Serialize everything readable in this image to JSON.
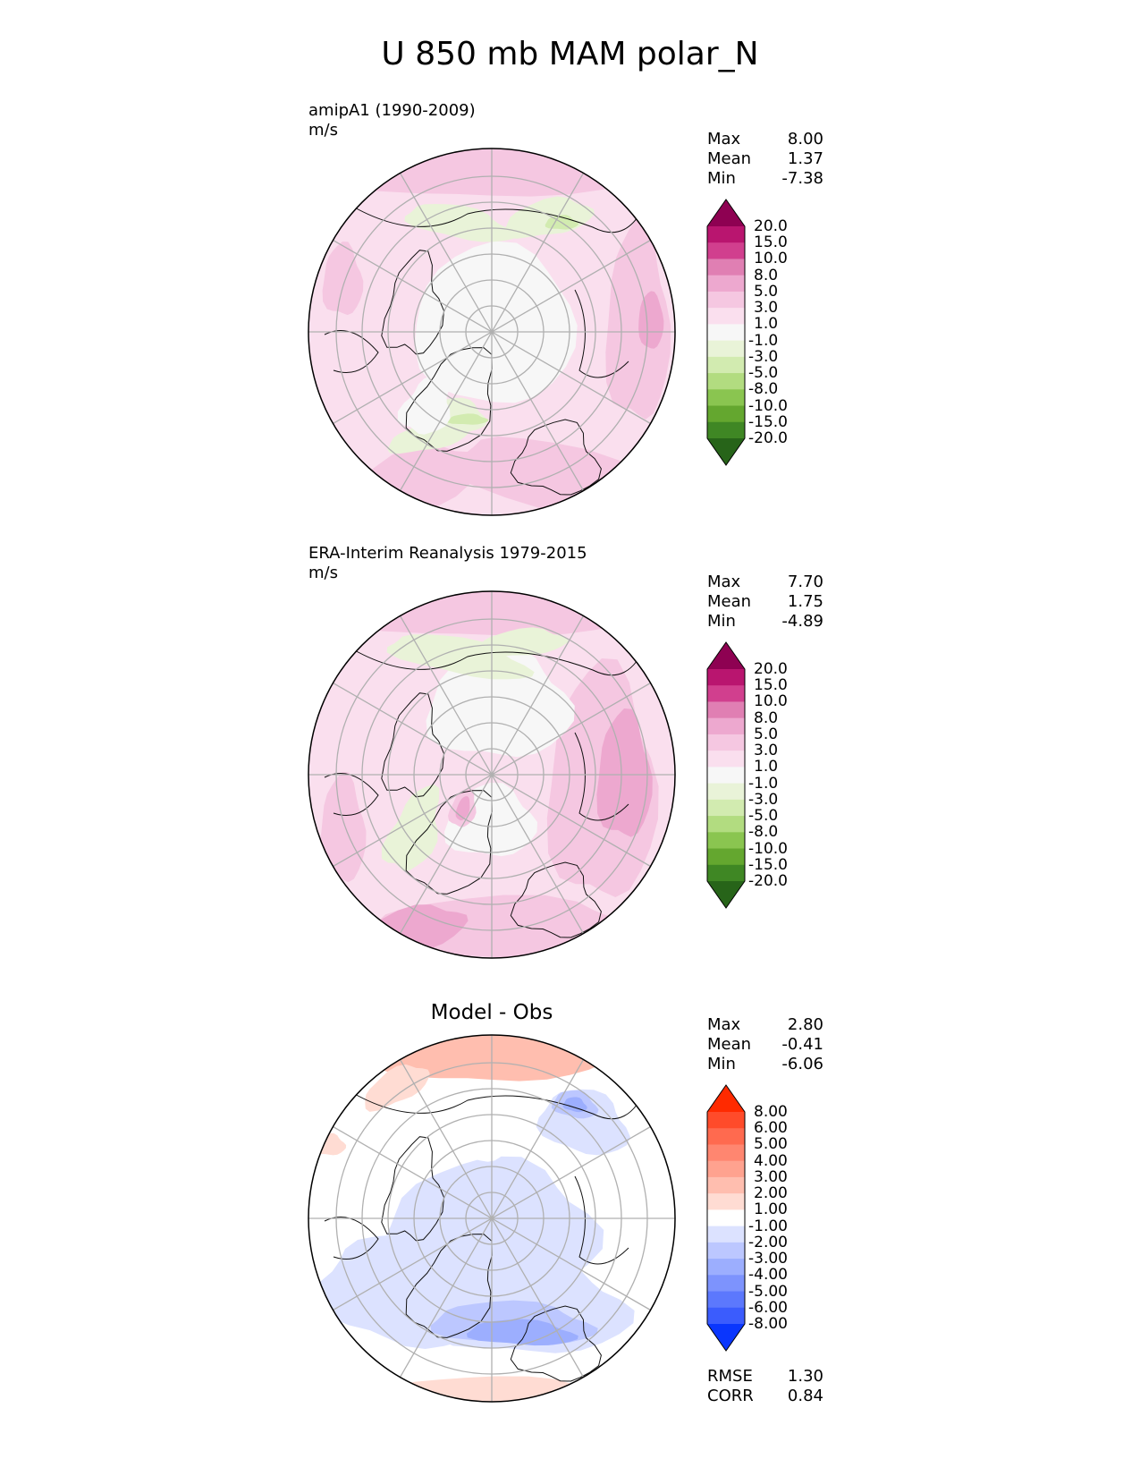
{
  "figure": {
    "title": "U 850 mb MAM polar_N"
  },
  "panels": [
    {
      "title_lines": [
        "amipA1 (1990-2009)",
        "m/s"
      ],
      "center_title": "",
      "stats": [
        {
          "label": "Max",
          "value": "8.00"
        },
        {
          "label": "Mean",
          "value": "1.37"
        },
        {
          "label": "Min",
          "value": "-7.38"
        }
      ],
      "colorbar": {
        "labels": [
          "20.0",
          "15.0",
          "10.0",
          "8.0",
          "5.0",
          "3.0",
          "1.0",
          "-1.0",
          "-3.0",
          "-5.0",
          "-8.0",
          "-10.0",
          "-15.0",
          "-20.0"
        ],
        "colors": [
          "#8e0152",
          "#b9156f",
          "#d13f8e",
          "#e07fb3",
          "#eda8cf",
          "#f5c7e1",
          "#fadfee",
          "#f7f7f7",
          "#e9f3d8",
          "#d2ebb0",
          "#b2dc80",
          "#8ac550",
          "#64a72f",
          "#3f8724",
          "#276419"
        ]
      }
    },
    {
      "title_lines": [
        "ERA-Interim Reanalysis 1979-2015",
        "m/s"
      ],
      "center_title": "",
      "stats": [
        {
          "label": "Max",
          "value": "7.70"
        },
        {
          "label": "Mean",
          "value": "1.75"
        },
        {
          "label": "Min",
          "value": "-4.89"
        }
      ],
      "colorbar": {
        "labels": [
          "20.0",
          "15.0",
          "10.0",
          "8.0",
          "5.0",
          "3.0",
          "1.0",
          "-1.0",
          "-3.0",
          "-5.0",
          "-8.0",
          "-10.0",
          "-15.0",
          "-20.0"
        ],
        "colors": [
          "#8e0152",
          "#b9156f",
          "#d13f8e",
          "#e07fb3",
          "#eda8cf",
          "#f5c7e1",
          "#fadfee",
          "#f7f7f7",
          "#e9f3d8",
          "#d2ebb0",
          "#b2dc80",
          "#8ac550",
          "#64a72f",
          "#3f8724",
          "#276419"
        ]
      }
    },
    {
      "title_lines": [],
      "center_title": "Model - Obs",
      "stats": [
        {
          "label": "Max",
          "value": "2.80"
        },
        {
          "label": "Mean",
          "value": "-0.41"
        },
        {
          "label": "Min",
          "value": "-6.06"
        }
      ],
      "extra_stats": [
        {
          "label": "RMSE",
          "value": "1.30"
        },
        {
          "label": "CORR",
          "value": "0.84"
        }
      ],
      "colorbar": {
        "labels": [
          "8.00",
          "6.00",
          "5.00",
          "4.00",
          "3.00",
          "2.00",
          "1.00",
          "-1.00",
          "-2.00",
          "-3.00",
          "-4.00",
          "-5.00",
          "-6.00",
          "-8.00"
        ],
        "colors": [
          "#ff2a00",
          "#ff4b2a",
          "#ff6a4f",
          "#ff8670",
          "#ffa28f",
          "#ffbeaf",
          "#ffdcd3",
          "#ffffff",
          "#dce2ff",
          "#bcc7ff",
          "#9caefe",
          "#7d93fd",
          "#5c78fd",
          "#3b5cfd",
          "#0a36fd"
        ]
      }
    }
  ],
  "chart_data": [
    {
      "type": "heatmap",
      "projection": "north polar stereographic",
      "title": "amipA1 (1990-2009)",
      "units": "m/s",
      "stats": {
        "max": 8.0,
        "mean": 1.37,
        "min": -7.38
      },
      "levels": [
        -20,
        -15,
        -10,
        -8,
        -5,
        -3,
        -1,
        1,
        3,
        5,
        8,
        10,
        15,
        20
      ]
    },
    {
      "type": "heatmap",
      "projection": "north polar stereographic",
      "title": "ERA-Interim Reanalysis 1979-2015",
      "units": "m/s",
      "stats": {
        "max": 7.7,
        "mean": 1.75,
        "min": -4.89
      },
      "levels": [
        -20,
        -15,
        -10,
        -8,
        -5,
        -3,
        -1,
        1,
        3,
        5,
        8,
        10,
        15,
        20
      ]
    },
    {
      "type": "heatmap",
      "projection": "north polar stereographic",
      "title": "Model - Obs",
      "stats": {
        "max": 2.8,
        "mean": -0.41,
        "min": -6.06,
        "rmse": 1.3,
        "corr": 0.84
      },
      "levels": [
        -8,
        -6,
        -5,
        -4,
        -3,
        -2,
        -1,
        1,
        2,
        3,
        4,
        5,
        6,
        8
      ]
    }
  ]
}
